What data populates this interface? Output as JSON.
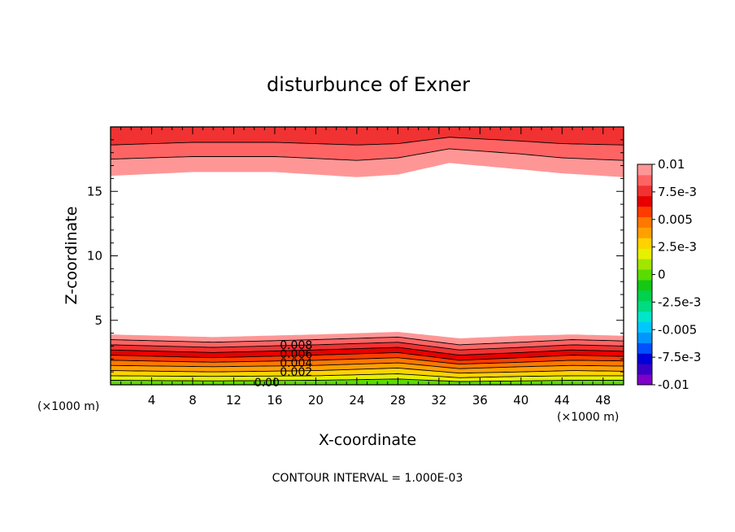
{
  "chart_data": {
    "type": "contour",
    "title": "disturbunce of Exner",
    "xlabel": "X-coordinate",
    "ylabel": "Z-coordinate",
    "x_unit_label": "(×1000 m)",
    "x_unit_label_right": "(×1000 m)",
    "footer": "CONTOUR INTERVAL = 1.000E-03",
    "xlim": [
      0,
      50
    ],
    "ylim": [
      0,
      20
    ],
    "x_ticks": [
      4,
      8,
      12,
      16,
      20,
      24,
      28,
      32,
      36,
      40,
      44,
      48
    ],
    "y_ticks": [
      5,
      10,
      15
    ],
    "contour_interval": 0.001,
    "contour_labels": [
      {
        "text": "0.008",
        "x": 16.5,
        "z": 3.1
      },
      {
        "text": "0.006",
        "x": 16.5,
        "z": 2.4
      },
      {
        "text": "0.004",
        "x": 16.5,
        "z": 1.7
      },
      {
        "text": "0.002",
        "x": 16.5,
        "z": 1.0
      },
      {
        "text": "0.00",
        "x": 14.0,
        "z": 0.2
      }
    ],
    "colorbar": {
      "labels": [
        "0.01",
        "7.5e-3",
        "0.005",
        "2.5e-3",
        "0",
        "-2.5e-3",
        "-0.005",
        "-7.5e-3",
        "-0.01"
      ],
      "min": -0.01,
      "max": 0.01,
      "colors": [
        "#7f00c8",
        "#3a00c8",
        "#0000d8",
        "#0050ff",
        "#0096ff",
        "#00c8ff",
        "#00e6c8",
        "#00dc82",
        "#00d250",
        "#14c814",
        "#5adc00",
        "#a0e600",
        "#e6f000",
        "#ffd200",
        "#ffa000",
        "#ff7800",
        "#ff3c00",
        "#e60000",
        "#f03232",
        "#ff6464",
        "#ff9696"
      ]
    },
    "series": [
      {
        "x": [
          0,
          8,
          16,
          24,
          28,
          33,
          40,
          44,
          50
        ],
        "z": [
          16.2,
          16.5,
          16.5,
          16.1,
          16.3,
          17.2,
          16.7,
          16.4,
          16.1
        ]
      },
      {
        "x": [
          0,
          8,
          16,
          24,
          28,
          33,
          40,
          44,
          50
        ],
        "z": [
          17.5,
          17.7,
          17.7,
          17.4,
          17.6,
          18.3,
          17.9,
          17.6,
          17.4
        ]
      },
      {
        "x": [
          0,
          8,
          16,
          24,
          28,
          33,
          40,
          44,
          50
        ],
        "z": [
          18.6,
          18.8,
          18.8,
          18.6,
          18.7,
          19.2,
          18.9,
          18.7,
          18.6
        ]
      },
      {
        "x": [
          0,
          10,
          20,
          28,
          34,
          40,
          45,
          50
        ],
        "z": [
          3.9,
          3.7,
          3.9,
          4.1,
          3.6,
          3.8,
          3.9,
          3.8
        ]
      },
      {
        "x": [
          0,
          10,
          20,
          28,
          34,
          40,
          45,
          50
        ],
        "z": [
          3.5,
          3.3,
          3.5,
          3.7,
          3.1,
          3.3,
          3.5,
          3.4
        ]
      },
      {
        "x": [
          0,
          10,
          20,
          28,
          34,
          40,
          45,
          50
        ],
        "z": [
          3.1,
          2.9,
          3.1,
          3.3,
          2.7,
          2.9,
          3.1,
          3.0
        ]
      },
      {
        "x": [
          0,
          10,
          20,
          28,
          34,
          40,
          45,
          50
        ],
        "z": [
          2.7,
          2.5,
          2.7,
          2.9,
          2.3,
          2.5,
          2.7,
          2.6
        ]
      },
      {
        "x": [
          0,
          10,
          20,
          28,
          34,
          40,
          45,
          50
        ],
        "z": [
          2.3,
          2.1,
          2.3,
          2.5,
          1.9,
          2.1,
          2.3,
          2.2
        ]
      },
      {
        "x": [
          0,
          10,
          20,
          28,
          34,
          40,
          45,
          50
        ],
        "z": [
          1.9,
          1.75,
          1.9,
          2.1,
          1.6,
          1.75,
          1.9,
          1.85
        ]
      },
      {
        "x": [
          0,
          10,
          20,
          28,
          34,
          40,
          45,
          50
        ],
        "z": [
          1.5,
          1.4,
          1.5,
          1.7,
          1.25,
          1.4,
          1.5,
          1.45
        ]
      },
      {
        "x": [
          0,
          10,
          20,
          28,
          34,
          40,
          45,
          50
        ],
        "z": [
          1.1,
          1.0,
          1.1,
          1.3,
          0.9,
          1.0,
          1.1,
          1.05
        ]
      },
      {
        "x": [
          0,
          10,
          20,
          28,
          34,
          40,
          45,
          50
        ],
        "z": [
          0.7,
          0.65,
          0.7,
          0.85,
          0.55,
          0.65,
          0.7,
          0.7
        ]
      },
      {
        "x": [
          0,
          10,
          20,
          28,
          34,
          40,
          45,
          50
        ],
        "z": [
          0.35,
          0.3,
          0.35,
          0.45,
          0.25,
          0.3,
          0.35,
          0.35
        ]
      }
    ]
  }
}
